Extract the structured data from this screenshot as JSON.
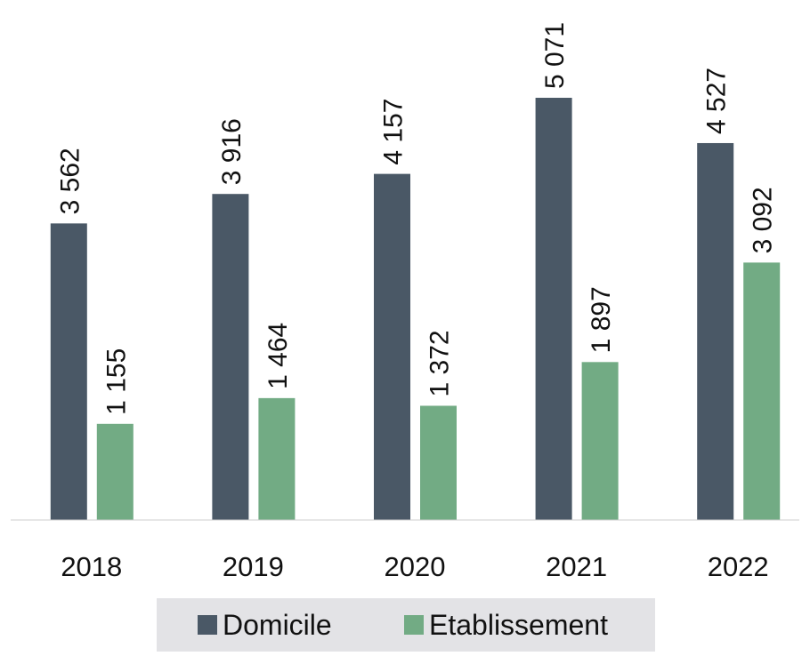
{
  "chart_data": {
    "type": "bar",
    "categories": [
      "2018",
      "2019",
      "2020",
      "2021",
      "2022"
    ],
    "series": [
      {
        "name": "Domicile",
        "color": "#4a5866",
        "values": [
          3562,
          3916,
          4157,
          5071,
          4527
        ],
        "value_labels": [
          "3 562",
          "3 916",
          "4 157",
          "5 071",
          "4 527"
        ]
      },
      {
        "name": "Etablissement",
        "color": "#72ab84",
        "values": [
          1155,
          1464,
          1372,
          1897,
          3092
        ],
        "value_labels": [
          "1 155",
          "1 464",
          "1 372",
          "1 897",
          "3 092"
        ]
      }
    ],
    "ylim": [
      0,
      6000
    ],
    "legend": "bottom"
  }
}
